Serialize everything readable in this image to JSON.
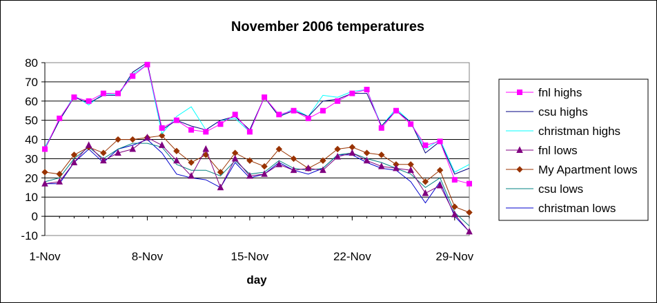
{
  "chart_data": {
    "type": "line",
    "title": "November 2006 temperatures",
    "xlabel": "day",
    "ylabel": "",
    "ylim": [
      -10,
      80
    ],
    "yticks": [
      -10,
      0,
      10,
      20,
      30,
      40,
      50,
      60,
      70,
      80
    ],
    "x": [
      1,
      2,
      3,
      4,
      5,
      6,
      7,
      8,
      9,
      10,
      11,
      12,
      13,
      14,
      15,
      16,
      17,
      18,
      19,
      20,
      21,
      22,
      23,
      24,
      25,
      26,
      27,
      28,
      29,
      30
    ],
    "xticks": [
      {
        "day": 1,
        "label": "1-Nov"
      },
      {
        "day": 8,
        "label": "8-Nov"
      },
      {
        "day": 15,
        "label": "15-Nov"
      },
      {
        "day": 22,
        "label": "22-Nov"
      },
      {
        "day": 29,
        "label": "29-Nov"
      }
    ],
    "grid": "horizontal",
    "legend_position": "right",
    "series": [
      {
        "name": "fnl highs",
        "color": "#ff00ff",
        "marker": "square",
        "values": [
          35,
          51,
          62,
          60,
          64,
          64,
          73,
          79,
          46,
          50,
          45,
          44,
          48,
          53,
          44,
          62,
          53,
          55,
          51,
          55,
          60,
          64,
          66,
          46,
          55,
          48,
          37,
          39,
          19,
          17
        ]
      },
      {
        "name": "csu highs",
        "color": "#000080",
        "marker": "none",
        "values": [
          35,
          50,
          62,
          59,
          63,
          63,
          75,
          80,
          45,
          50,
          47,
          45,
          50,
          52,
          45,
          62,
          52,
          55,
          52,
          60,
          61,
          64,
          64,
          47,
          55,
          49,
          33,
          39,
          22,
          25
        ]
      },
      {
        "name": "christman highs",
        "color": "#00ffff",
        "marker": "none",
        "values": [
          36,
          50,
          63,
          58,
          64,
          63,
          74,
          79,
          43,
          52,
          57,
          45,
          50,
          51,
          44,
          62,
          52,
          56,
          52,
          63,
          62,
          65,
          66,
          47,
          56,
          49,
          35,
          40,
          23,
          27
        ]
      },
      {
        "name": "fnl lows",
        "color": "#800080",
        "marker": "triangle",
        "values": [
          17,
          18,
          28,
          37,
          29,
          33,
          35,
          41,
          37,
          29,
          21,
          35,
          15,
          30,
          21,
          22,
          27,
          24,
          25,
          24,
          31,
          33,
          29,
          26,
          25,
          24,
          12,
          16,
          1,
          -8
        ]
      },
      {
        "name": "My Apartment lows",
        "color": "#993300",
        "marker": "diamond",
        "values": [
          23,
          22,
          32,
          36,
          33,
          40,
          40,
          41,
          42,
          34,
          28,
          32,
          23,
          33,
          29,
          26,
          35,
          30,
          25,
          29,
          35,
          36,
          33,
          32,
          27,
          27,
          18,
          24,
          5,
          2
        ]
      },
      {
        "name": "csu lows",
        "color": "#008080",
        "marker": "none",
        "values": [
          18,
          20,
          30,
          36,
          30,
          35,
          38,
          38,
          36,
          27,
          24,
          24,
          21,
          29,
          22,
          23,
          29,
          25,
          24,
          25,
          32,
          33,
          30,
          28,
          25,
          22,
          15,
          20,
          2,
          -5
        ]
      },
      {
        "name": "christman lows",
        "color": "#0000cc",
        "marker": "none",
        "values": [
          17,
          17,
          28,
          35,
          28,
          35,
          37,
          40,
          33,
          22,
          20,
          19,
          15,
          28,
          20,
          22,
          28,
          24,
          22,
          25,
          32,
          32,
          28,
          25,
          24,
          18,
          7,
          18,
          0,
          -8
        ]
      }
    ]
  }
}
